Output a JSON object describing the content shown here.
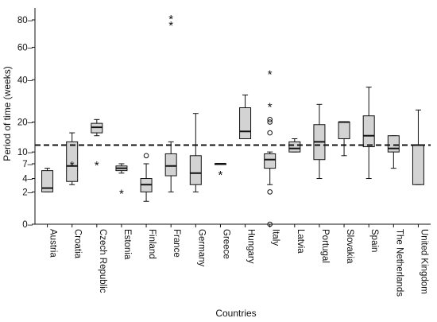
{
  "chart_data": {
    "type": "boxplot",
    "xlabel": "Countries",
    "ylabel": "Period of time (weeks)",
    "y_ticks": [
      0,
      2,
      4,
      7,
      10,
      20,
      40,
      60,
      80
    ],
    "y_scale": "square-root",
    "ylim": [
      0,
      84
    ],
    "reference_line": 12,
    "categories": [
      {
        "name": "Austria",
        "whisker_low": 2,
        "q1": 2,
        "median": 2.5,
        "q3": 5.5,
        "whisker_high": 6,
        "outliers": [],
        "extremes": []
      },
      {
        "name": "Croatia",
        "whisker_low": 3,
        "q1": 3.5,
        "median": 6.5,
        "q3": 13,
        "whisker_high": 16,
        "outliers": [],
        "extremes": [
          7
        ]
      },
      {
        "name": "Czech Republic",
        "whisker_low": 15,
        "q1": 16,
        "median": 18,
        "q3": 19.5,
        "whisker_high": 21,
        "outliers": [],
        "extremes": [
          7
        ]
      },
      {
        "name": "Estonia",
        "whisker_low": 5,
        "q1": 5.5,
        "median": 6,
        "q3": 6.5,
        "whisker_high": 7,
        "outliers": [],
        "extremes": [
          2
        ]
      },
      {
        "name": "Finland",
        "whisker_low": 1,
        "q1": 2,
        "median": 3,
        "q3": 4,
        "whisker_high": 7,
        "outliers": [
          9
        ],
        "extremes": []
      },
      {
        "name": "France",
        "whisker_low": 2,
        "q1": 4.5,
        "median": 6.5,
        "q3": 9.5,
        "whisker_high": 13,
        "outliers": [],
        "extremes": [
          77,
          82
        ]
      },
      {
        "name": "Germany",
        "whisker_low": 2,
        "q1": 3,
        "median": 5,
        "q3": 9,
        "whisker_high": 23.5,
        "outliers": [],
        "extremes": []
      },
      {
        "name": "Greece",
        "whisker_low": 7,
        "q1": 7,
        "median": 7,
        "q3": 7,
        "whisker_high": 7,
        "outliers": [],
        "extremes": [
          5
        ]
      },
      {
        "name": "Hungary",
        "whisker_low": 14,
        "q1": 14,
        "median": 16.5,
        "q3": 26,
        "whisker_high": 32,
        "outliers": [],
        "extremes": []
      },
      {
        "name": "Italy",
        "whisker_low": 3,
        "q1": 6,
        "median": 8,
        "q3": 9.5,
        "whisker_high": 10,
        "outliers": [
          0,
          2,
          16,
          20,
          21
        ],
        "extremes": [
          27,
          44
        ]
      },
      {
        "name": "Latvia",
        "whisker_low": 10,
        "q1": 10,
        "median": 11,
        "q3": 13,
        "whisker_high": 14,
        "outliers": [],
        "extremes": []
      },
      {
        "name": "Portugal",
        "whisker_low": 4,
        "q1": 8,
        "median": 13,
        "q3": 19,
        "whisker_high": 27.5,
        "outliers": [],
        "extremes": []
      },
      {
        "name": "Slovakia",
        "whisker_low": 9,
        "q1": 14,
        "median": 20,
        "q3": 20,
        "whisker_high": 20,
        "outliers": [],
        "extremes": []
      },
      {
        "name": "Spain",
        "whisker_low": 4,
        "q1": 11.5,
        "median": 15,
        "q3": 22.5,
        "whisker_high": 36,
        "outliers": [],
        "extremes": []
      },
      {
        "name": "The Netherlands",
        "whisker_low": 6,
        "q1": 10,
        "median": 11,
        "q3": 15,
        "whisker_high": 15,
        "outliers": [],
        "extremes": []
      },
      {
        "name": "United Kingdom",
        "whisker_low": 3,
        "q1": 3,
        "median": 12,
        "q3": 12,
        "whisker_high": 25,
        "outliers": [],
        "extremes": []
      }
    ],
    "colors": {
      "box_fill": "#d3d3d3",
      "stroke": "#111111",
      "background": "#ffffff"
    }
  }
}
